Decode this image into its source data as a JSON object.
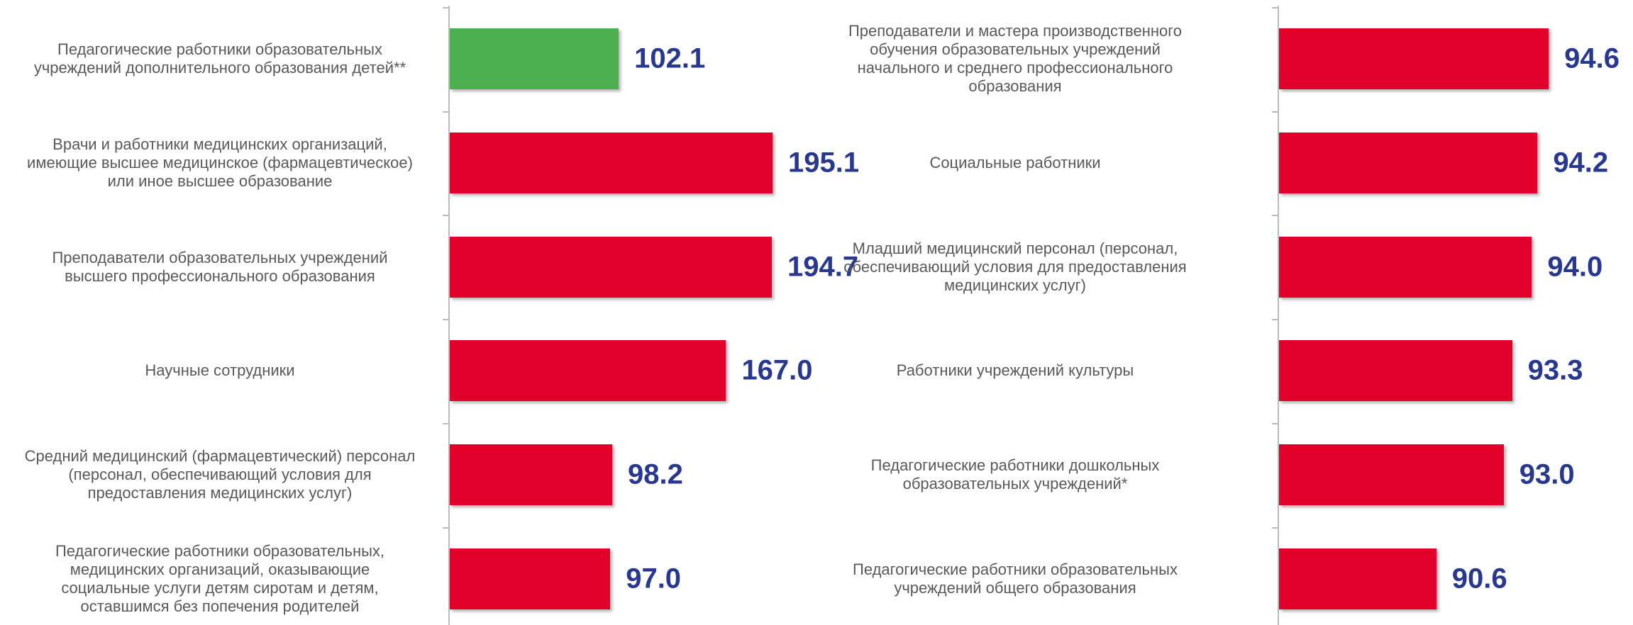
{
  "chart_data": [
    {
      "type": "bar",
      "orientation": "horizontal",
      "categories": [
        "Педагогические работники образовательных\nучреждений дополнительного образования детей**",
        "Врачи и работники медицинских организаций,\nимеющие высшее медицинское (фармацевтическое)\nили иное высшее образование",
        "Преподаватели образовательных учреждений\nвысшего профессионального образования",
        "Научные сотрудники",
        "Средний медицинский (фармацевтический) персонал\n(персонал, обеспечивающий условия для\nпредоставления медицинских услуг)",
        "Педагогические работники образовательных,\nмедицинских организаций, оказывающие\nсоциальные услуги детям сиротам и детям,\nоставшимся без попечения родителей"
      ],
      "values": [
        102.1,
        195.1,
        194.7,
        167.0,
        98.2,
        97.0
      ],
      "value_labels": [
        "102.1",
        "195.1",
        "194.7",
        "167.0",
        "98.2",
        "97.0"
      ],
      "colors": [
        "#4caf50",
        "#e2002a",
        "#e2002a",
        "#e2002a",
        "#e2002a",
        "#e2002a"
      ],
      "xlim": [
        0,
        250
      ]
    },
    {
      "type": "bar",
      "orientation": "horizontal",
      "categories": [
        "Преподаватели и мастера производственного\nобучения образовательных учреждений\nначального и среднего профессионального\nобразования",
        "Социальные работники",
        "Младший медицинский персонал (персонал,\nобеспечивающий условия для предоставления\nмедицинских услуг)",
        "Работники учреждений культуры",
        "Педагогические работники дошкольных\nобразовательных учреждений*",
        "Педагогические работники образовательных\nучреждений общего образования"
      ],
      "values": [
        94.6,
        94.2,
        94.0,
        93.3,
        93.0,
        90.6
      ],
      "value_labels": [
        "94.6",
        "94.2",
        "94.0",
        "93.3",
        "93.0",
        "90.6"
      ],
      "colors": [
        "#e2002a",
        "#e2002a",
        "#e2002a",
        "#e2002a",
        "#e2002a",
        "#e2002a"
      ],
      "xlim": [
        85,
        100
      ]
    }
  ]
}
